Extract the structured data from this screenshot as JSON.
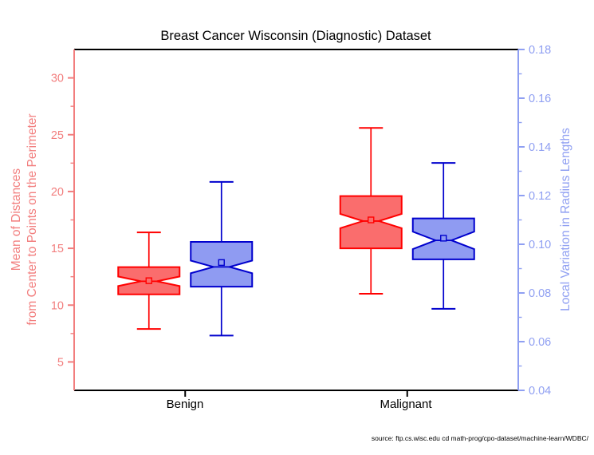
{
  "figure": {
    "title": "Breast Cancer Wisconsin (Diagnostic) Dataset",
    "source_note": "source: ftp.cs.wisc.edu cd math-prog/cpo-dataset/machine-learn/WDBC/"
  },
  "chart_data": {
    "type": "box",
    "title": "Breast Cancer Wisconsin (Diagnostic) Dataset",
    "categories": [
      "Benign",
      "Malignant"
    ],
    "grid": false,
    "legend": "none",
    "notched": true,
    "left_axis": {
      "label_lines": [
        "Mean of Distances",
        "from Center to Points on the Perimeter"
      ],
      "color": "#f27e7e",
      "range": [
        2.5,
        32.5
      ],
      "major_ticks": [
        5,
        10,
        15,
        20,
        25,
        30
      ],
      "minor_ticks": [
        7.5,
        12.5,
        17.5,
        22.5,
        27.5
      ]
    },
    "right_axis": {
      "label": "Local Variation in Radius Lengths",
      "color": "#8f9ff2",
      "range": [
        0.04,
        0.18
      ],
      "major_ticks": [
        "0.04",
        "0.06",
        "0.08",
        "0.10",
        "0.12",
        "0.14",
        "0.16",
        "0.18"
      ],
      "minor_ticks": [
        0.05,
        0.07,
        0.09,
        0.11,
        0.13,
        0.15,
        0.17
      ]
    },
    "x_axis": {
      "color": "#000000"
    },
    "series": [
      {
        "name": "Mean of Distances from Center to Points on the Perimeter",
        "axis": "left",
        "fill": "#fa6d6d",
        "stroke": "#ff0000",
        "boxes": [
          {
            "category": "Benign",
            "whisker_low": 7.9,
            "q1": 10.95,
            "median": 12.1,
            "q3": 13.35,
            "whisker_high": 16.4,
            "mean": 12.15,
            "notch": 0.42
          },
          {
            "category": "Malignant",
            "whisker_low": 11.0,
            "q1": 15.0,
            "median": 17.4,
            "q3": 19.6,
            "whisker_high": 25.6,
            "mean": 17.5,
            "notch": 0.63
          }
        ]
      },
      {
        "name": "Local Variation in Radius Lengths",
        "axis": "right",
        "fill": "#8f9bf2",
        "stroke": "#0000cd",
        "boxes": [
          {
            "category": "Benign",
            "whisker_low": 0.0625,
            "q1": 0.0826,
            "median": 0.0907,
            "q3": 0.101,
            "whisker_high": 0.1256,
            "mean": 0.0925,
            "notch": 0.0026
          },
          {
            "category": "Malignant",
            "whisker_low": 0.0735,
            "q1": 0.0938,
            "median": 0.1016,
            "q3": 0.1106,
            "whisker_high": 0.1334,
            "mean": 0.1025,
            "notch": 0.0036
          }
        ]
      }
    ]
  }
}
